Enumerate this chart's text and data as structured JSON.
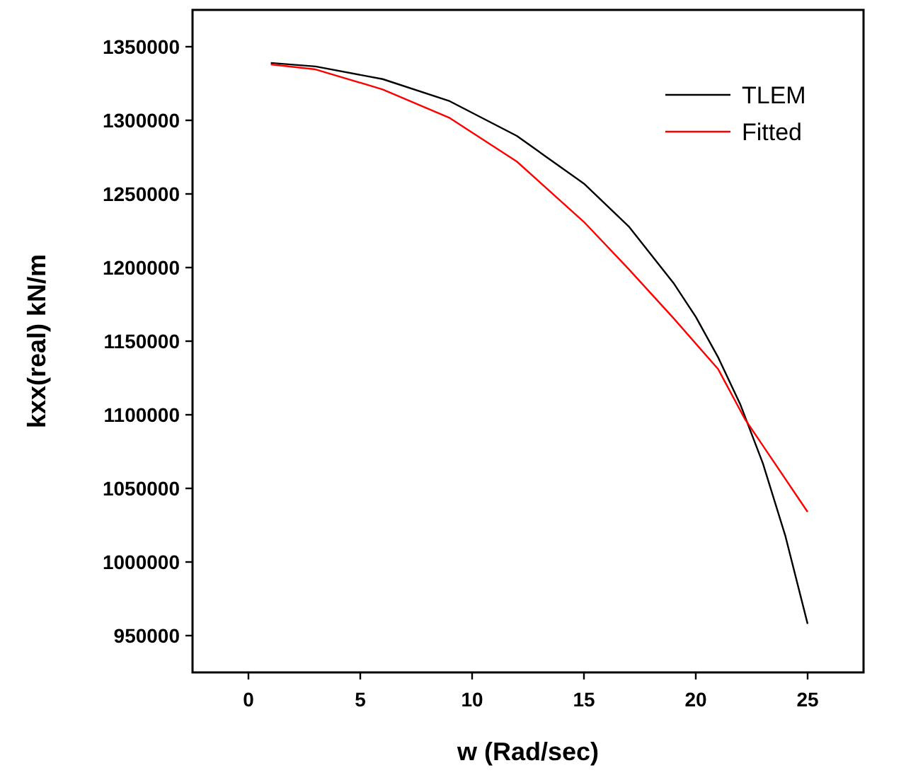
{
  "chart_data": {
    "type": "line",
    "xlabel": "w (Rad/sec)",
    "ylabel": "kxx(real) kN/m",
    "xlim": [
      -2.5,
      27.5
    ],
    "xticks": [
      0,
      5,
      10,
      15,
      20,
      25
    ],
    "ylim": [
      925000,
      1375000
    ],
    "yticks": [
      950000,
      1000000,
      1050000,
      1100000,
      1150000,
      1200000,
      1250000,
      1300000,
      1350000
    ],
    "grid": false,
    "legend": "top right",
    "line_style": "solid",
    "marker": "none",
    "series": [
      {
        "name": "TLEM",
        "color": "#000000",
        "x": [
          1,
          3,
          6,
          9,
          12,
          15,
          17,
          19,
          20,
          21,
          22,
          23,
          24,
          25
        ],
        "values": [
          1339000,
          1336600,
          1328000,
          1313000,
          1289400,
          1257000,
          1228000,
          1189600,
          1166500,
          1139000,
          1106700,
          1067000,
          1018000,
          958000
        ]
      },
      {
        "name": "Fitted",
        "color": "#ff0000",
        "x": [
          1,
          3,
          6,
          9,
          12,
          15,
          17,
          19,
          21,
          22.2,
          23,
          25
        ],
        "values": [
          1338000,
          1334600,
          1321000,
          1301600,
          1272000,
          1231000,
          1199000,
          1165700,
          1131000,
          1097000,
          1079000,
          1034000
        ]
      }
    ]
  }
}
